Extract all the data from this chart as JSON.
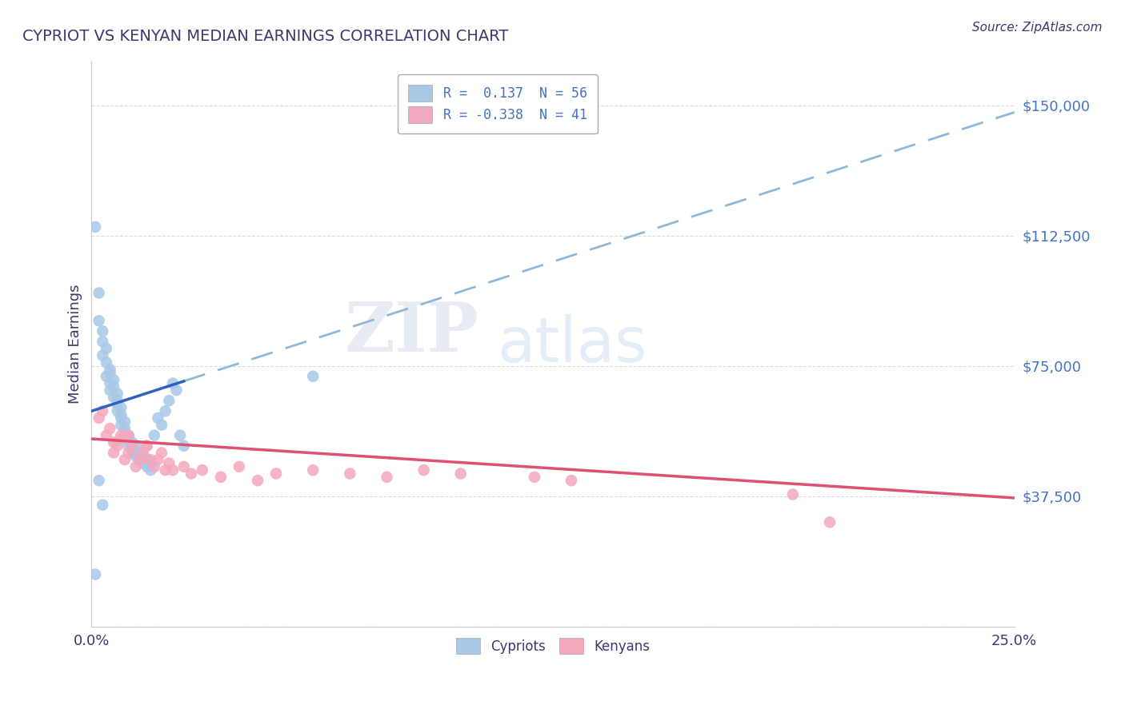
{
  "title": "CYPRIOT VS KENYAN MEDIAN EARNINGS CORRELATION CHART",
  "source": "Source: ZipAtlas.com",
  "ylabel": "Median Earnings",
  "xlim": [
    0.0,
    0.25
  ],
  "ylim": [
    0,
    162500
  ],
  "yticks": [
    0,
    37500,
    75000,
    112500,
    150000
  ],
  "ytick_labels": [
    "",
    "$37,500",
    "$75,000",
    "$112,500",
    "$150,000"
  ],
  "xtick_labels": [
    "0.0%",
    "25.0%"
  ],
  "legend_entries": [
    {
      "label": "R =  0.137  N = 56",
      "color": "#a8c8e8"
    },
    {
      "label": "R = -0.338  N = 41",
      "color": "#f4a8bc"
    }
  ],
  "title_color": "#3a3a6e",
  "axis_label_color": "#3a3a6e",
  "tick_color": "#3a3a6e",
  "ytick_color": "#4472c4",
  "watermark_zip": "ZIP",
  "watermark_atlas": "atlas",
  "background_color": "#ffffff",
  "grid_color": "#cccccc",
  "cypriot_color": "#a8c8e8",
  "kenyan_color": "#f4a8bc",
  "cypriot_line_color": "#3060c0",
  "kenyan_line_color": "#e05070",
  "cypriot_dashed_color": "#90b8d8",
  "cypriot_x": [
    0.001,
    0.002,
    0.002,
    0.003,
    0.003,
    0.003,
    0.004,
    0.004,
    0.004,
    0.005,
    0.005,
    0.005,
    0.005,
    0.006,
    0.006,
    0.006,
    0.007,
    0.007,
    0.007,
    0.007,
    0.008,
    0.008,
    0.008,
    0.008,
    0.009,
    0.009,
    0.009,
    0.01,
    0.01,
    0.01,
    0.011,
    0.011,
    0.011,
    0.012,
    0.012,
    0.013,
    0.013,
    0.014,
    0.014,
    0.015,
    0.015,
    0.016,
    0.016,
    0.017,
    0.018,
    0.019,
    0.02,
    0.021,
    0.022,
    0.023,
    0.024,
    0.025,
    0.003,
    0.06,
    0.002,
    0.001
  ],
  "cypriot_y": [
    115000,
    96000,
    88000,
    85000,
    78000,
    82000,
    76000,
    80000,
    72000,
    74000,
    70000,
    73000,
    68000,
    71000,
    66000,
    69000,
    64000,
    67000,
    62000,
    65000,
    60000,
    63000,
    58000,
    61000,
    56000,
    59000,
    57000,
    54000,
    52000,
    55000,
    50000,
    53000,
    51000,
    49000,
    52000,
    48000,
    50000,
    47000,
    49000,
    46000,
    48000,
    45000,
    47000,
    55000,
    60000,
    58000,
    62000,
    65000,
    70000,
    68000,
    55000,
    52000,
    35000,
    72000,
    42000,
    15000
  ],
  "kenyan_x": [
    0.002,
    0.003,
    0.004,
    0.005,
    0.006,
    0.007,
    0.008,
    0.009,
    0.01,
    0.011,
    0.012,
    0.013,
    0.014,
    0.015,
    0.016,
    0.017,
    0.018,
    0.019,
    0.02,
    0.021,
    0.022,
    0.025,
    0.027,
    0.03,
    0.035,
    0.04,
    0.045,
    0.05,
    0.06,
    0.07,
    0.08,
    0.09,
    0.1,
    0.12,
    0.13,
    0.006,
    0.008,
    0.01,
    0.015,
    0.19,
    0.2
  ],
  "kenyan_y": [
    60000,
    62000,
    55000,
    57000,
    50000,
    52000,
    55000,
    48000,
    50000,
    52000,
    46000,
    48000,
    50000,
    52000,
    48000,
    46000,
    48000,
    50000,
    45000,
    47000,
    45000,
    46000,
    44000,
    45000,
    43000,
    46000,
    42000,
    44000,
    45000,
    44000,
    43000,
    45000,
    44000,
    43000,
    42000,
    53000,
    54000,
    55000,
    52000,
    38000,
    30000
  ],
  "cypriot_line_x0": 0.0,
  "cypriot_line_x_solid_end": 0.025,
  "cypriot_line_x1": 0.25,
  "cypriot_line_y0": 62000,
  "cypriot_line_y1": 148000,
  "kenyan_line_x0": 0.0,
  "kenyan_line_x1": 0.25,
  "kenyan_line_y0": 54000,
  "kenyan_line_y1": 37000
}
